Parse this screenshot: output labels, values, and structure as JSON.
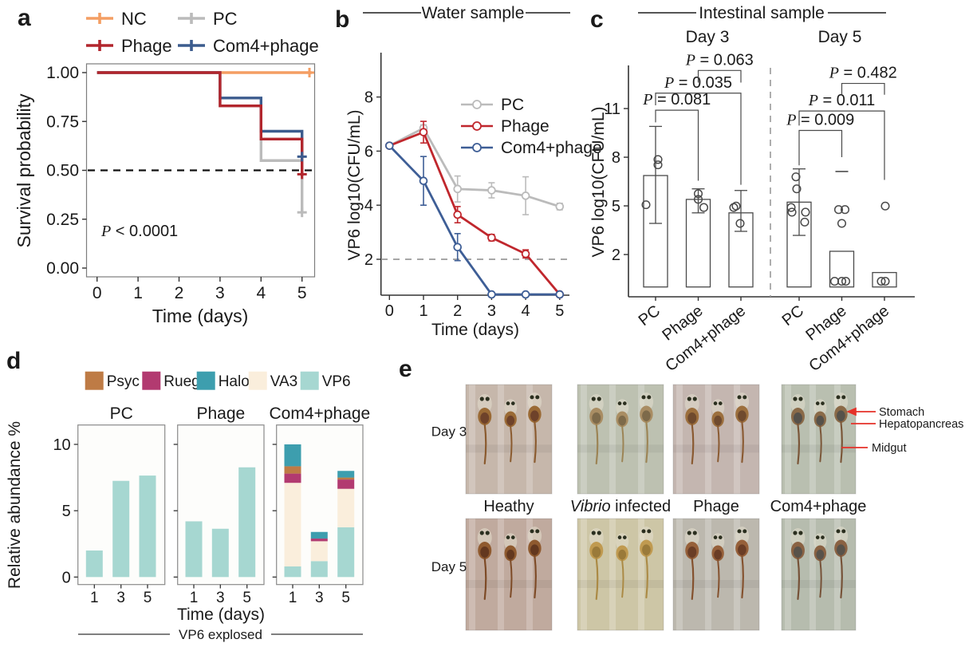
{
  "panels": {
    "a": {
      "label": "a"
    },
    "b": {
      "label": "b"
    },
    "c": {
      "label": "c"
    },
    "d": {
      "label": "d"
    },
    "e": {
      "label": "e"
    }
  },
  "chart_data": [
    {
      "panel": "a",
      "type": "step-line",
      "title": "",
      "xlabel": "Time (days)",
      "ylabel": "Survival probability",
      "xticks": [
        "0",
        "1",
        "2",
        "3",
        "4",
        "5"
      ],
      "yticks": [
        "0.00",
        "0.25",
        "0.50",
        "0.75",
        "1.00"
      ],
      "ylim": [
        0,
        1.05
      ],
      "annotation": "P < 0.0001",
      "reference_line_y": 0.5,
      "series": [
        {
          "name": "NC",
          "color": "#F49E63",
          "points": [
            [
              0,
              1.0
            ],
            [
              5,
              1.0
            ]
          ]
        },
        {
          "name": "PC",
          "color": "#BBBBBB",
          "points": [
            [
              0,
              1.0
            ],
            [
              3,
              1.0
            ],
            [
              3,
              0.83
            ],
            [
              4,
              0.83
            ],
            [
              4,
              0.55
            ],
            [
              5,
              0.55
            ],
            [
              5,
              0.28
            ]
          ]
        },
        {
          "name": "Phage",
          "color": "#B2262D",
          "points": [
            [
              0,
              1.0
            ],
            [
              3,
              1.0
            ],
            [
              3,
              0.83
            ],
            [
              4,
              0.83
            ],
            [
              4,
              0.66
            ],
            [
              5,
              0.66
            ],
            [
              5,
              0.47
            ]
          ]
        },
        {
          "name": "Com4+phage",
          "color": "#3C5C8E",
          "points": [
            [
              0,
              1.0
            ],
            [
              3,
              1.0
            ],
            [
              3,
              0.87
            ],
            [
              4,
              0.87
            ],
            [
              4,
              0.7
            ],
            [
              5,
              0.7
            ],
            [
              5,
              0.57
            ]
          ]
        }
      ],
      "legend_order": [
        "NC",
        "PC",
        "Phage",
        "Com4+phage"
      ]
    },
    {
      "panel": "b",
      "type": "line",
      "title": "Water sample",
      "xlabel": "Time (days)",
      "ylabel": "VP6 log10(CFU/mL)",
      "xticks": [
        "0",
        "1",
        "2",
        "3",
        "4",
        "5"
      ],
      "yticks": [
        "2",
        "4",
        "6",
        "8"
      ],
      "ylim": [
        0.7,
        9.7
      ],
      "detection_limit_y": 2,
      "series": [
        {
          "name": "PC",
          "color": "#BBBBBB",
          "values": [
            6.2,
            6.85,
            4.6,
            4.55,
            4.35,
            3.95
          ],
          "errors": [
            0.05,
            0.12,
            0.48,
            0.28,
            0.7,
            0.12
          ]
        },
        {
          "name": "Phage",
          "color": "#C0272D",
          "values": [
            6.2,
            6.7,
            3.65,
            2.8,
            2.2,
            0.7
          ],
          "errors": [
            0.05,
            0.4,
            0.3,
            0.12,
            0.15,
            0
          ]
        },
        {
          "name": "Com4+phage",
          "color": "#3E5E96",
          "values": [
            6.2,
            4.9,
            2.45,
            0.7,
            0.7,
            0.7
          ],
          "errors": [
            0.05,
            0.9,
            0.5,
            0,
            0,
            0
          ]
        }
      ]
    },
    {
      "panel": "c",
      "type": "bar-scatter",
      "title": "Intestinal sample",
      "ylabel": "VP6 log10(CFU/mL)",
      "yticks": [
        "2",
        "5",
        "8",
        "11"
      ],
      "groups": [
        {
          "name": "Day 3",
          "bars": [
            {
              "label": "PC",
              "mean": 6.87,
              "err_low": 3.92,
              "err_high": 9.9,
              "points": [
                7.86,
                7.53,
                5.07
              ],
              "jitter": [
                3,
                3,
                -12
              ]
            },
            {
              "label": "Phage",
              "mean": 5.4,
              "err_low": 4.57,
              "err_high": 6.05,
              "points": [
                5.75,
                5.4,
                4.9
              ],
              "jitter": [
                0,
                0,
                7
              ]
            },
            {
              "label": "Com4+phage",
              "mean": 4.57,
              "err_low": 3.43,
              "err_high": 5.95,
              "points": [
                4.99,
                4.9,
                3.92
              ],
              "jitter": [
                -6,
                -9,
                -1
              ]
            }
          ],
          "comparisons": [
            {
              "a": 0,
              "b": 1,
              "p": "P = 0.081",
              "y": 10.9,
              "leg_a": 10.15,
              "leg_b": 6.55
            },
            {
              "a": 0,
              "b": 2,
              "p": "P = 0.035",
              "y": 11.95,
              "leg_a": 11.2,
              "leg_b": 6.3
            },
            {
              "a": 1,
              "b": 2,
              "p": "P = 0.063",
              "y": 13.35,
              "leg_a": 12.6,
              "leg_b": 12.6
            }
          ]
        },
        {
          "name": "Day 5",
          "bars": [
            {
              "label": "PC",
              "mean": 5.23,
              "err_low": 3.18,
              "err_high": 7.28,
              "points": [
                6.79,
                6.05,
                4.9,
                4.61,
                4.61,
                4.0
              ],
              "jitter": [
                -4,
                -3,
                -10,
                -9,
                8,
                7
              ]
            },
            {
              "label": "Phage",
              "mean": 2.2,
              "outlier_dash": 7.12,
              "points": [
                4.77,
                4.77,
                3.92,
                0.35,
                0.35,
                0.35
              ],
              "jitter": [
                -4,
                4,
                0,
                -9,
                0,
                5
              ]
            },
            {
              "label": "Com4+phage",
              "mean": 0.89,
              "points": [
                4.99,
                0.35,
                0.35
              ],
              "jitter": [
                1,
                -4,
                1
              ]
            }
          ],
          "comparisons": [
            {
              "a": 0,
              "b": 1,
              "p": "P = 0.009",
              "y": 9.65,
              "leg_a": 7.5,
              "leg_b": 8.0
            },
            {
              "a": 0,
              "b": 2,
              "p": "P = 0.011",
              "y": 10.85,
              "leg_a": 9.95,
              "leg_b": 6.6
            },
            {
              "a": 1,
              "b": 2,
              "p": "P = 0.482",
              "y": 12.55,
              "leg_a": 11.85,
              "leg_b": 11.85
            }
          ]
        }
      ]
    },
    {
      "panel": "d",
      "type": "stacked-bar",
      "ylabel": "Relative abundance %",
      "xlabel": "Time (days)",
      "footer": "VP6 explosed",
      "yticks": [
        "0",
        "5",
        "10"
      ],
      "categories": [
        "1",
        "3",
        "5"
      ],
      "taxa": [
        {
          "name": "Psyc",
          "color": "#BE7B45"
        },
        {
          "name": "Rueg",
          "color": "#B23A70"
        },
        {
          "name": "Halo",
          "color": "#3D9EAE"
        },
        {
          "name": "VA3",
          "color": "#FAEEDC"
        },
        {
          "name": "VP6",
          "color": "#A6D7D1"
        }
      ],
      "stack_order": [
        "VP6",
        "VA3",
        "Rueg",
        "Psyc",
        "Halo"
      ],
      "subplots": [
        {
          "name": "PC",
          "stacks": {
            "VP6": [
              2.0,
              7.25,
              7.65
            ],
            "VA3": [
              0,
              0,
              0
            ],
            "Rueg": [
              0,
              0,
              0
            ],
            "Psyc": [
              0,
              0,
              0
            ],
            "Halo": [
              0,
              0,
              0
            ]
          }
        },
        {
          "name": "Phage",
          "stacks": {
            "VP6": [
              4.2,
              3.64,
              8.27
            ],
            "VA3": [
              0,
              0,
              0
            ],
            "Rueg": [
              0,
              0,
              0
            ],
            "Psyc": [
              0,
              0,
              0
            ],
            "Halo": [
              0,
              0,
              0
            ]
          }
        },
        {
          "name": "Com4+phage",
          "stacks": {
            "VP6": [
              0.8,
              1.2,
              3.75
            ],
            "VA3": [
              6.3,
              1.5,
              2.9
            ],
            "Rueg": [
              0.7,
              0.2,
              0.7
            ],
            "Psyc": [
              0.55,
              0,
              0.15
            ],
            "Halo": [
              1.65,
              0.5,
              0.5
            ]
          }
        }
      ]
    }
  ],
  "panel_e": {
    "row_labels": [
      "Day 3",
      "Day 5"
    ],
    "column_labels": [
      "Heathy",
      "Vibrio infected",
      "Phage",
      "Com4+phage"
    ],
    "italic_word": "Vibrio",
    "annotations": [
      "Stomach",
      "Hepatopancreas",
      "Midgut"
    ],
    "annotation_color": "#E53128"
  }
}
